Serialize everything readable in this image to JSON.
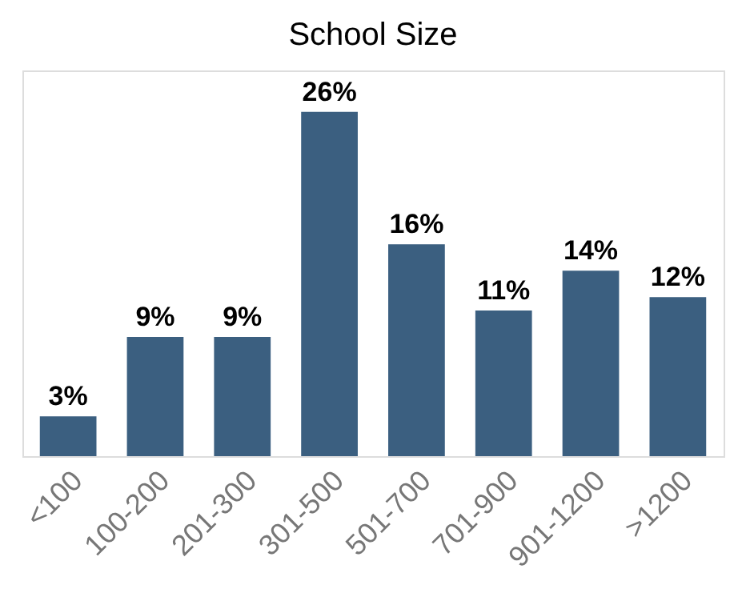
{
  "chart_data": {
    "type": "bar",
    "title": "School Size",
    "categories": [
      "<100",
      "100-200",
      "201-300",
      "301-500",
      "501-700",
      "701-900",
      "901-1200",
      ">1200"
    ],
    "values": [
      3,
      9,
      9,
      26,
      16,
      11,
      14,
      12
    ],
    "value_labels": [
      "3%",
      "9%",
      "9%",
      "26%",
      "16%",
      "11%",
      "14%",
      "12%"
    ],
    "color": "#3b5f80"
  }
}
